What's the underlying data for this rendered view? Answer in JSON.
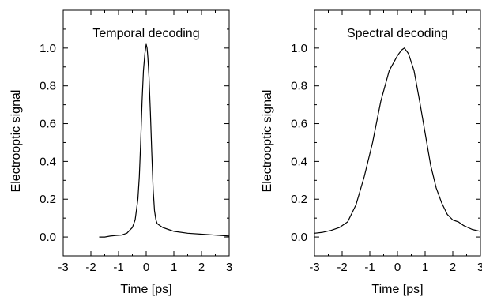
{
  "chart_data": [
    {
      "type": "line",
      "title": "Temporal decoding",
      "xlabel": "Time [ps]",
      "ylabel": "Electrooptic signal",
      "xlim": [
        -3,
        3
      ],
      "ylim": [
        -0.1,
        1.2
      ],
      "xticks": [
        "-3",
        "-2",
        "-1",
        "0",
        "1",
        "2",
        "3"
      ],
      "yticks": [
        "0.0",
        "0.2",
        "0.4",
        "0.6",
        "0.8",
        "1.0"
      ],
      "grid": false,
      "series": [
        {
          "x": [
            -1.7,
            -1.5,
            -1.3,
            -1.1,
            -0.9,
            -0.7,
            -0.5,
            -0.4,
            -0.3,
            -0.25,
            -0.2,
            -0.15,
            -0.1,
            -0.05,
            0.0,
            0.03,
            0.06,
            0.1,
            0.15,
            0.2,
            0.25,
            0.3,
            0.35,
            0.4,
            0.5,
            0.6,
            0.8,
            1.0,
            1.5,
            2.0,
            2.5,
            3.0
          ],
          "y": [
            0.0,
            0.0,
            0.005,
            0.008,
            0.01,
            0.02,
            0.05,
            0.09,
            0.2,
            0.32,
            0.5,
            0.72,
            0.88,
            0.97,
            1.02,
            1.0,
            0.95,
            0.85,
            0.66,
            0.45,
            0.25,
            0.14,
            0.09,
            0.07,
            0.06,
            0.05,
            0.04,
            0.03,
            0.02,
            0.015,
            0.01,
            0.005
          ]
        }
      ]
    },
    {
      "type": "line",
      "title": "Spectral decoding",
      "xlabel": "Time [ps]",
      "ylabel": "Electrooptic signal",
      "xlim": [
        -3,
        3
      ],
      "ylim": [
        -0.1,
        1.2
      ],
      "xticks": [
        "-3",
        "-2",
        "-1",
        "0",
        "1",
        "2",
        "3"
      ],
      "yticks": [
        "0.0",
        "0.2",
        "0.4",
        "0.6",
        "0.8",
        "1.0"
      ],
      "grid": false,
      "series": [
        {
          "x": [
            -3.0,
            -2.7,
            -2.4,
            -2.1,
            -1.8,
            -1.5,
            -1.2,
            -0.9,
            -0.6,
            -0.3,
            0.0,
            0.15,
            0.25,
            0.4,
            0.6,
            0.8,
            1.0,
            1.2,
            1.4,
            1.6,
            1.8,
            2.0,
            2.2,
            2.4,
            2.7,
            3.0
          ],
          "y": [
            0.02,
            0.025,
            0.035,
            0.05,
            0.08,
            0.17,
            0.32,
            0.5,
            0.72,
            0.88,
            0.96,
            0.99,
            1.0,
            0.97,
            0.88,
            0.72,
            0.55,
            0.38,
            0.26,
            0.18,
            0.12,
            0.09,
            0.08,
            0.06,
            0.04,
            0.03
          ]
        }
      ]
    }
  ]
}
